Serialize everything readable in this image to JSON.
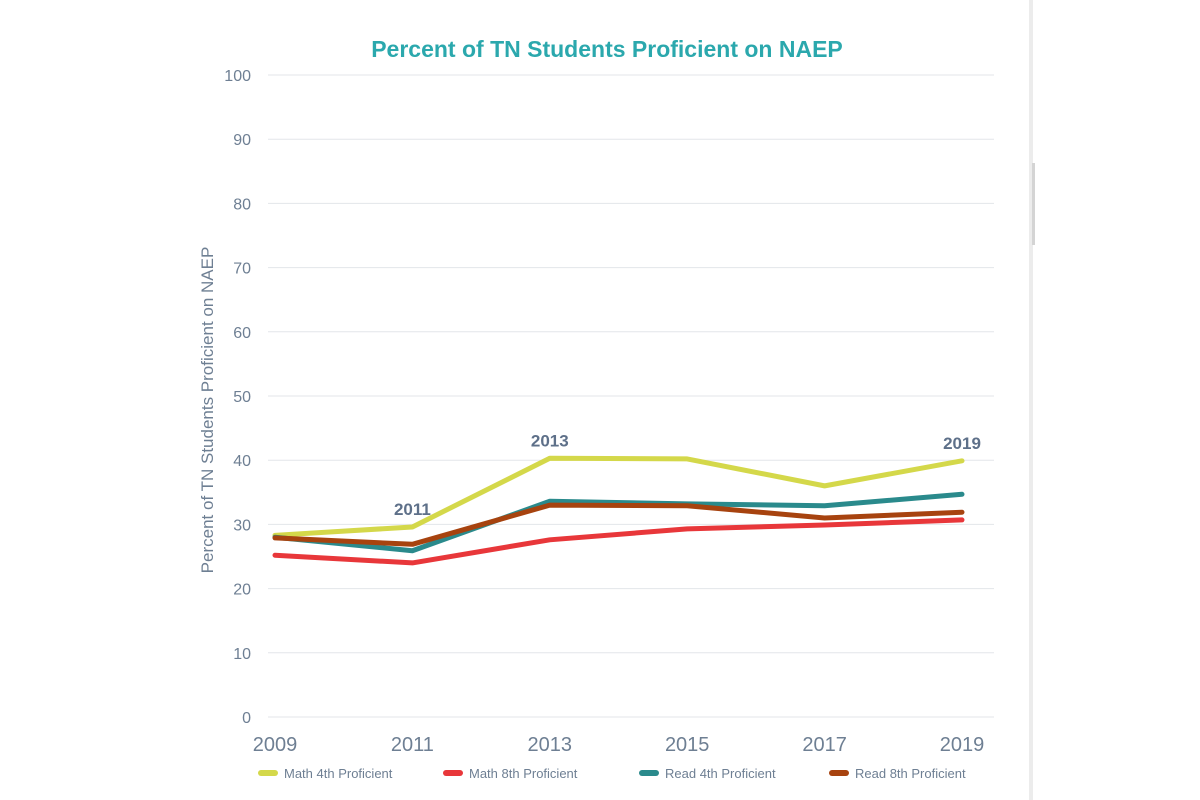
{
  "chart_data": {
    "type": "line",
    "title": "Percent of TN Students Proficient on NAEP",
    "xlabel": "",
    "ylabel": "Percent of TN Students Proficient on NAEP",
    "x": [
      "2009",
      "2011",
      "2013",
      "2015",
      "2017",
      "2019"
    ],
    "ylim": [
      0,
      100
    ],
    "yticks": [
      0,
      10,
      20,
      30,
      40,
      50,
      60,
      70,
      80,
      90,
      100
    ],
    "grid": true,
    "legend_position": "bottom",
    "series": [
      {
        "name": "Math 4th Proficient",
        "color": "#d4d84a",
        "values": [
          28.3,
          29.6,
          40.3,
          40.2,
          36.0,
          39.9
        ]
      },
      {
        "name": "Math 8th Proficient",
        "color": "#e8373a",
        "values": [
          25.2,
          24.0,
          27.6,
          29.3,
          29.9,
          30.7
        ]
      },
      {
        "name": "Read 4th Proficient",
        "color": "#2a8a8c",
        "values": [
          28.0,
          25.9,
          33.6,
          33.2,
          32.9,
          34.7
        ]
      },
      {
        "name": "Read 8th Proficient",
        "color": "#a7430f",
        "values": [
          27.9,
          26.9,
          33.0,
          32.9,
          31.0,
          31.9
        ]
      }
    ],
    "annotations": [
      {
        "text": "2011",
        "x": "2011",
        "y": 29.6
      },
      {
        "text": "2013",
        "x": "2013",
        "y": 40.3
      },
      {
        "text": "2019",
        "x": "2019",
        "y": 39.9
      }
    ]
  }
}
